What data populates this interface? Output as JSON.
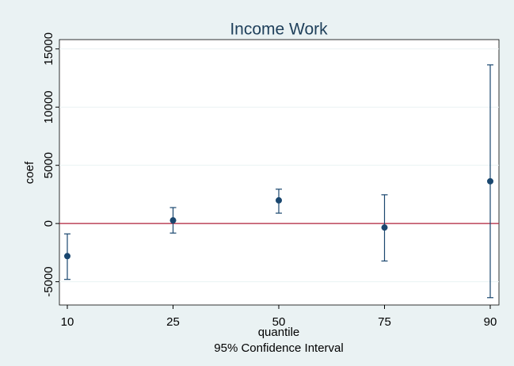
{
  "chart_data": {
    "type": "errorbar",
    "title": "Income Work",
    "ylabel": "coef",
    "xlabel": "quantile",
    "note": "95% Confidence Interval",
    "categories": [
      "10",
      "25",
      "50",
      "75",
      "90"
    ],
    "series": [
      {
        "color": "#1a476f",
        "values": [
          -2800,
          270,
          1990,
          -340,
          3630
        ],
        "lower": [
          -4800,
          -820,
          890,
          -3220,
          -6370
        ],
        "upper": [
          -890,
          1370,
          2950,
          2470,
          13630
        ]
      }
    ],
    "ylim": [
      -7000,
      15800
    ],
    "yticks": [
      -5000,
      0,
      5000,
      10000,
      15000
    ],
    "grid": true,
    "refline": 0,
    "refline_color": "#b0203a"
  }
}
